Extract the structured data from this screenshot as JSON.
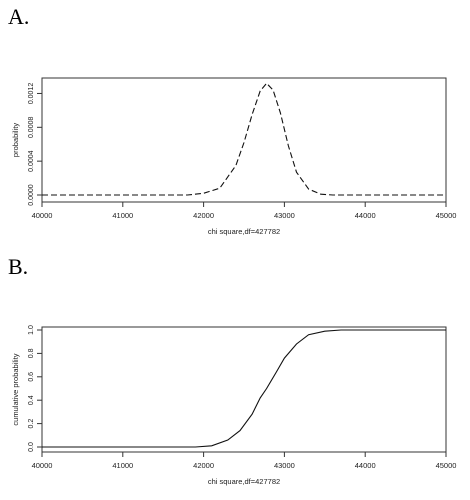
{
  "panels": [
    {
      "label": "A."
    },
    {
      "label": "B."
    }
  ],
  "chart_data": [
    {
      "type": "line",
      "title": "",
      "xlabel": "chi square,df=427782",
      "ylabel": "probability",
      "xlim": [
        40000,
        45000
      ],
      "ylim": [
        0,
        0.0013
      ],
      "xticks": [
        "40000",
        "41000",
        "42000",
        "43000",
        "44000",
        "45000"
      ],
      "yticks": [
        "0.0000",
        "0.0004",
        "0.0008",
        "0.0012"
      ],
      "line_style": "dashed",
      "grid": false,
      "series": [
        {
          "x": [
            40000,
            41000,
            41800,
            42000,
            42200,
            42400,
            42500,
            42600,
            42700,
            42780,
            42860,
            42950,
            43050,
            43150,
            43300,
            43450,
            43600,
            43800,
            44000,
            45000
          ],
          "y": [
            0,
            0,
            0,
            2e-05,
            8e-05,
            0.00035,
            0.00062,
            0.00095,
            0.00123,
            0.00132,
            0.00124,
            0.00097,
            0.00058,
            0.00027,
            7e-05,
            1e-05,
            0,
            0,
            0,
            0
          ]
        }
      ]
    },
    {
      "type": "line",
      "title": "",
      "xlabel": "chi square,df=427782",
      "ylabel": "cumulative probability",
      "xlim": [
        40000,
        45000
      ],
      "ylim": [
        0,
        1.0
      ],
      "xticks": [
        "40000",
        "41000",
        "42000",
        "43000",
        "44000",
        "45000"
      ],
      "yticks": [
        "0.0",
        "0.2",
        "0.4",
        "0.6",
        "0.8",
        "1.0"
      ],
      "line_style": "solid",
      "grid": false,
      "series": [
        {
          "x": [
            40000,
            41000,
            41900,
            42100,
            42300,
            42450,
            42600,
            42700,
            42780,
            42900,
            43000,
            43150,
            43300,
            43500,
            43700,
            44000,
            45000
          ],
          "y": [
            0,
            0,
            0.0,
            0.01,
            0.06,
            0.14,
            0.28,
            0.42,
            0.5,
            0.64,
            0.76,
            0.88,
            0.96,
            0.99,
            1.0,
            1.0,
            1.0
          ]
        }
      ]
    }
  ]
}
